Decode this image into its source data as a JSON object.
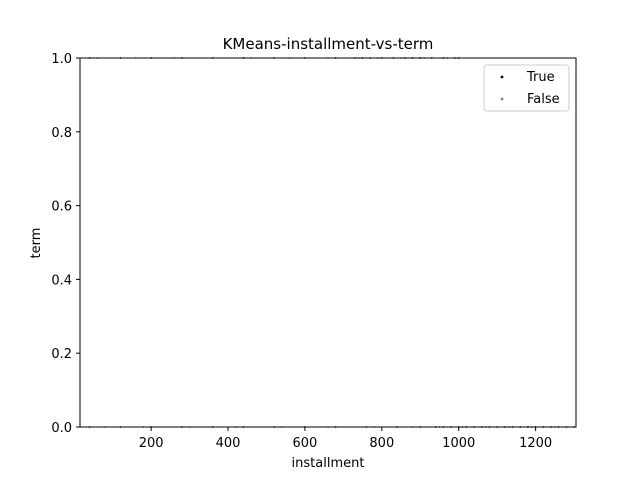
{
  "chart_data": {
    "type": "scatter",
    "title": "KMeans-installment-vs-term",
    "xlabel": "installment",
    "ylabel": "term",
    "xlim": [
      15,
      1305
    ],
    "ylim": [
      0,
      1
    ],
    "xticks": [
      200,
      400,
      600,
      800,
      1000,
      1200
    ],
    "yticks": [
      0.0,
      0.2,
      0.4,
      0.6,
      0.8,
      1.0
    ],
    "xtick_labels": [
      "200",
      "400",
      "600",
      "800",
      "1000",
      "1200"
    ],
    "ytick_labels": [
      "0.0",
      "0.2",
      "0.4",
      "0.6",
      "0.8",
      "1.0"
    ],
    "legend_position": "top-right",
    "grid": false,
    "series": [
      {
        "name": "True",
        "color": "#000000",
        "points": [
          [
            40,
            1
          ],
          [
            120,
            1
          ],
          [
            200,
            1
          ],
          [
            280,
            1
          ],
          [
            360,
            1
          ],
          [
            440,
            1
          ],
          [
            520,
            1
          ],
          [
            600,
            1
          ],
          [
            680,
            1
          ],
          [
            730,
            1
          ],
          [
            750,
            1
          ],
          [
            770,
            1
          ],
          [
            800,
            1
          ],
          [
            830,
            1
          ],
          [
            860,
            1
          ],
          [
            880,
            1
          ],
          [
            900,
            1
          ],
          [
            930,
            1
          ],
          [
            960,
            1
          ],
          [
            990,
            1
          ],
          [
            1000,
            1
          ],
          [
            40,
            0
          ],
          [
            120,
            0
          ],
          [
            200,
            0
          ],
          [
            280,
            0
          ],
          [
            360,
            0
          ],
          [
            440,
            0
          ],
          [
            520,
            0
          ],
          [
            600,
            0
          ],
          [
            680,
            0
          ],
          [
            760,
            0
          ],
          [
            840,
            0
          ],
          [
            900,
            0
          ],
          [
            940,
            0
          ],
          [
            960,
            0
          ],
          [
            980,
            0
          ],
          [
            1000,
            0
          ],
          [
            1020,
            0
          ],
          [
            1040,
            0
          ],
          [
            1060,
            0
          ],
          [
            1080,
            0
          ],
          [
            1100,
            0
          ],
          [
            1120,
            0
          ],
          [
            1140,
            0
          ],
          [
            1160,
            0
          ],
          [
            1180,
            0
          ],
          [
            1200,
            0
          ],
          [
            1220,
            0
          ],
          [
            1240,
            0
          ],
          [
            1260,
            0
          ],
          [
            1280,
            0
          ],
          [
            1300,
            0
          ]
        ]
      },
      {
        "name": "False",
        "color": "#808080",
        "points": [
          [
            60,
            1
          ],
          [
            160,
            1
          ],
          [
            260,
            1
          ],
          [
            360,
            1
          ],
          [
            460,
            1
          ],
          [
            560,
            1
          ],
          [
            660,
            1
          ],
          [
            740,
            1
          ],
          [
            790,
            1
          ],
          [
            850,
            1
          ],
          [
            910,
            1
          ],
          [
            970,
            1
          ],
          [
            80,
            0
          ],
          [
            180,
            0
          ],
          [
            300,
            0
          ],
          [
            420,
            0
          ],
          [
            540,
            0
          ],
          [
            660,
            0
          ],
          [
            780,
            0
          ],
          [
            880,
            0
          ],
          [
            950,
            0
          ],
          [
            1010,
            0
          ],
          [
            1070,
            0
          ],
          [
            1130,
            0
          ],
          [
            1190,
            0
          ],
          [
            1250,
            0
          ]
        ]
      }
    ]
  }
}
